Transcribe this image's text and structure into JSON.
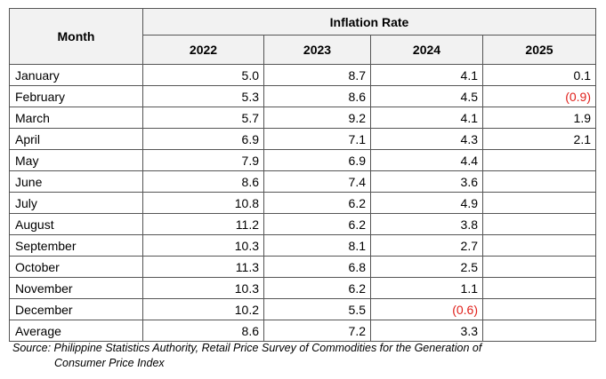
{
  "table": {
    "header": {
      "month": "Month",
      "group": "Inflation Rate",
      "years": [
        "2022",
        "2023",
        "2024",
        "2025"
      ]
    },
    "rows": [
      {
        "month": "January",
        "v": [
          "5.0",
          "8.7",
          "4.1",
          "0.1"
        ]
      },
      {
        "month": "February",
        "v": [
          "5.3",
          "8.6",
          "4.5",
          "(0.9)"
        ]
      },
      {
        "month": "March",
        "v": [
          "5.7",
          "9.2",
          "4.1",
          "1.9"
        ]
      },
      {
        "month": "April",
        "v": [
          "6.9",
          "7.1",
          "4.3",
          "2.1"
        ]
      },
      {
        "month": "May",
        "v": [
          "7.9",
          "6.9",
          "4.4",
          ""
        ]
      },
      {
        "month": "June",
        "v": [
          "8.6",
          "7.4",
          "3.6",
          ""
        ]
      },
      {
        "month": "July",
        "v": [
          "10.8",
          "6.2",
          "4.9",
          ""
        ]
      },
      {
        "month": "August",
        "v": [
          "11.2",
          "6.2",
          "3.8",
          ""
        ]
      },
      {
        "month": "September",
        "v": [
          "10.3",
          "8.1",
          "2.7",
          ""
        ]
      },
      {
        "month": "October",
        "v": [
          "11.3",
          "6.8",
          "2.5",
          ""
        ]
      },
      {
        "month": "November",
        "v": [
          "10.3",
          "6.2",
          "1.1",
          ""
        ]
      },
      {
        "month": "December",
        "v": [
          "10.2",
          "5.5",
          "(0.6)",
          ""
        ]
      },
      {
        "month": "Average",
        "v": [
          "8.6",
          "7.2",
          "3.3",
          ""
        ]
      }
    ],
    "negative_color": "#e0201b",
    "header_bg": "#f2f2f2"
  },
  "source": {
    "line1": "Source: Philippine Statistics Authority, Retail Price Survey of Commodities for the Generation of",
    "line2": "Consumer Price Index"
  }
}
